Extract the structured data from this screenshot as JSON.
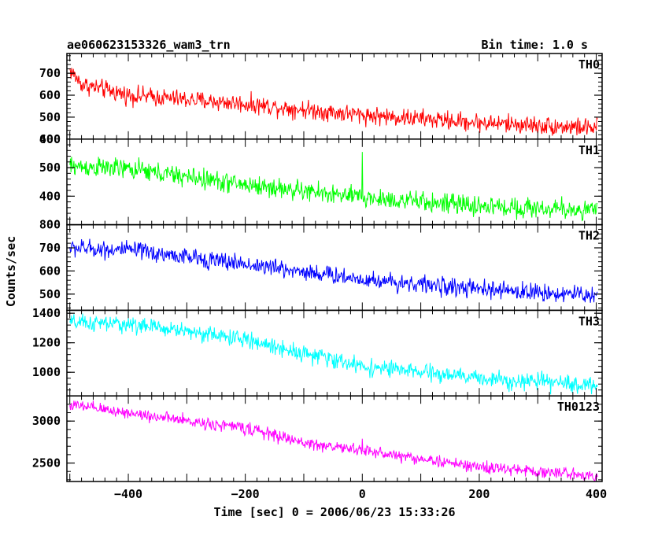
{
  "chart_data": {
    "type": "line",
    "title": "ae060623153326_wam3_trn",
    "subtitle": "Bin time: 1.0 s",
    "xlabel": "Time [sec] 0 = 2006/06/23 15:33:26",
    "ylabel": "Counts/sec",
    "xlim": [
      -505,
      410
    ],
    "x_ticks": [
      -400,
      -200,
      0,
      200,
      400
    ],
    "x_tick_labels": [
      "−400",
      "−200",
      "0",
      "200",
      "400"
    ],
    "bin_time_s": 1.0,
    "panels": [
      {
        "name": "TH0",
        "color": "#ff0000",
        "ylim": [
          400,
          790
        ],
        "y_ticks": [
          400,
          500,
          600,
          700
        ],
        "y_tick_labels": [
          "400",
          "500",
          "600",
          "700"
        ],
        "trend_t": [
          -500,
          -480,
          -400,
          -200,
          0,
          200,
          400
        ],
        "trend_v": [
          715,
          650,
          600,
          560,
          510,
          475,
          450
        ],
        "noise": 26,
        "spike": null
      },
      {
        "name": "TH1",
        "color": "#00ff00",
        "ylim": [
          300,
          600
        ],
        "y_ticks": [
          400,
          500,
          600
        ],
        "y_tick_labels": [
          "400",
          "500",
          "600"
        ],
        "trend_t": [
          -500,
          -400,
          -200,
          0,
          200,
          400
        ],
        "trend_v": [
          505,
          495,
          440,
          395,
          365,
          350
        ],
        "noise": 22,
        "spike": {
          "t": 0,
          "v": 555
        }
      },
      {
        "name": "TH2",
        "color": "#0000ff",
        "ylim": [
          430,
          800
        ],
        "y_ticks": [
          500,
          600,
          700,
          800
        ],
        "y_tick_labels": [
          "500",
          "600",
          "700",
          "800"
        ],
        "trend_t": [
          -500,
          -400,
          -200,
          0,
          200,
          400
        ],
        "trend_v": [
          700,
          690,
          630,
          565,
          520,
          495
        ],
        "noise": 24,
        "spike": null
      },
      {
        "name": "TH3",
        "color": "#00ffff",
        "ylim": [
          840,
          1420
        ],
        "y_ticks": [
          1000,
          1200,
          1400
        ],
        "y_tick_labels": [
          "1000",
          "1200",
          "1400"
        ],
        "trend_t": [
          -500,
          -400,
          -300,
          -200,
          -100,
          0,
          200,
          400
        ],
        "trend_v": [
          1335,
          1325,
          1280,
          1220,
          1130,
          1040,
          960,
          910
        ],
        "noise": 35,
        "spike": null
      },
      {
        "name": "TH0123",
        "color": "#ff00ff",
        "ylim": [
          2280,
          3300
        ],
        "y_ticks": [
          2500,
          3000
        ],
        "y_tick_labels": [
          "2500",
          "3000"
        ],
        "trend_t": [
          -500,
          -400,
          -300,
          -200,
          -100,
          0,
          200,
          400
        ],
        "trend_v": [
          3190,
          3100,
          3000,
          2920,
          2740,
          2650,
          2450,
          2350
        ],
        "noise": 45,
        "spike": {
          "t": 0,
          "v": 2790
        }
      }
    ]
  }
}
